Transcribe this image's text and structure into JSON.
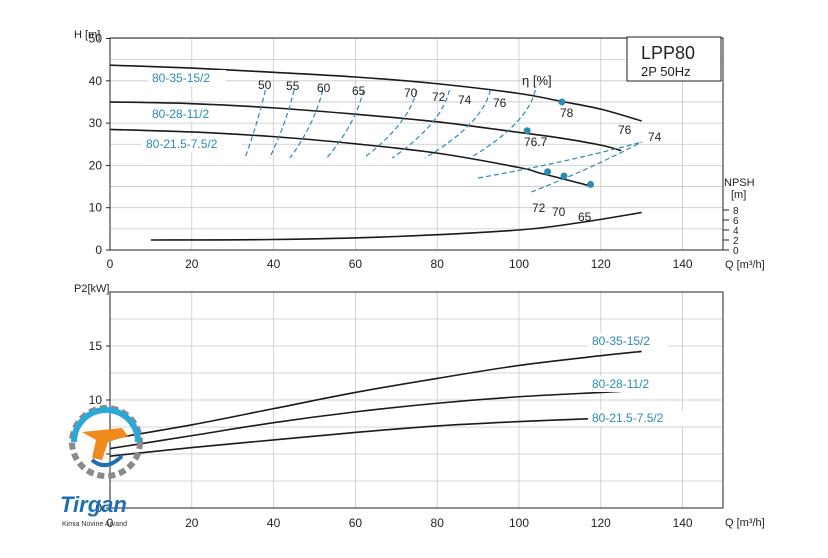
{
  "colors": {
    "curve": "#1a1a1a",
    "accent": "#2a8db0",
    "grid": "#c8c8c8",
    "axis": "#222222"
  },
  "model_box": {
    "line1": "LPP80",
    "line2": "2P  50Hz"
  },
  "eta_label": "η  [%]",
  "logo": {
    "name": "Tirgan",
    "tagline": "Kimia Novine Arvand",
    "icon": "gear-drop-logo-icon"
  },
  "chart_data": [
    {
      "type": "line",
      "title": "",
      "xlabel": "Q [m³/h]",
      "ylabel": "H [m]",
      "xlim": [
        0,
        150
      ],
      "ylim": [
        0,
        50
      ],
      "xticks": [
        0,
        20,
        40,
        60,
        80,
        100,
        120,
        140
      ],
      "yticks": [
        0,
        10,
        20,
        30,
        40,
        50
      ],
      "grid": true,
      "right_axis": {
        "label": "NPSH [m]",
        "ticks": [
          0,
          2,
          4,
          6,
          8
        ]
      },
      "series": [
        {
          "name": "80-35-15/2",
          "label_color": "#2a8db0",
          "x": [
            0,
            20,
            40,
            60,
            80,
            100,
            110,
            120,
            130
          ],
          "y": [
            43.7,
            43.0,
            42.0,
            40.9,
            39.3,
            37.0,
            35.2,
            33.3,
            30.5
          ]
        },
        {
          "name": "80-28-11/2",
          "label_color": "#2a8db0",
          "x": [
            0,
            20,
            40,
            60,
            80,
            100,
            110,
            120,
            125
          ],
          "y": [
            35.0,
            34.6,
            33.6,
            32.1,
            30.3,
            27.8,
            26.5,
            24.8,
            23.5
          ]
        },
        {
          "name": "80-21.5-7.5/2",
          "label_color": "#2a8db0",
          "x": [
            0,
            20,
            40,
            60,
            80,
            100,
            105,
            110,
            118
          ],
          "y": [
            28.5,
            27.9,
            26.8,
            25.1,
            22.9,
            19.5,
            18.2,
            17.0,
            15.0
          ]
        },
        {
          "name": "NPSH",
          "x": [
            10,
            40,
            70,
            100,
            115,
            130
          ],
          "y": [
            2.0,
            2.1,
            2.7,
            4.0,
            5.5,
            7.5
          ]
        }
      ],
      "best_efficiency_points": [
        {
          "x": 110.5,
          "y": 35.0
        },
        {
          "x": 102,
          "y": 28.2
        },
        {
          "x": 107,
          "y": 18.5
        },
        {
          "x": 111,
          "y": 17.5
        },
        {
          "x": 117.5,
          "y": 15.5
        }
      ],
      "efficiency_labels": [
        "50",
        "55",
        "60",
        "65",
        "70",
        "72",
        "74",
        "76",
        "78",
        "76.7",
        "76",
        "74",
        "72",
        "70",
        "65"
      ]
    },
    {
      "type": "line",
      "title": "",
      "xlabel": "Q [m³/h]",
      "ylabel": "P2[kW]",
      "xlim": [
        0,
        150
      ],
      "ylim": [
        0,
        20
      ],
      "xticks": [
        0,
        20,
        40,
        60,
        80,
        100,
        120,
        140
      ],
      "yticks": [
        0,
        5,
        10,
        15
      ],
      "grid": true,
      "series": [
        {
          "name": "80-35-15/2",
          "label_color": "#2a8db0",
          "x": [
            0,
            20,
            40,
            60,
            80,
            100,
            120,
            130
          ],
          "y": [
            6.4,
            7.7,
            9.2,
            10.7,
            12.0,
            13.2,
            14.1,
            14.5
          ]
        },
        {
          "name": "80-28-11/2",
          "label_color": "#2a8db0",
          "x": [
            0,
            20,
            40,
            60,
            80,
            100,
            120,
            125
          ],
          "y": [
            5.5,
            6.7,
            7.9,
            8.9,
            9.7,
            10.3,
            10.7,
            10.8
          ]
        },
        {
          "name": "80-21.5-7.5/2",
          "label_color": "#2a8db0",
          "x": [
            0,
            20,
            40,
            60,
            80,
            100,
            120
          ],
          "y": [
            4.8,
            5.6,
            6.3,
            7.0,
            7.6,
            8.0,
            8.3
          ]
        }
      ]
    }
  ]
}
